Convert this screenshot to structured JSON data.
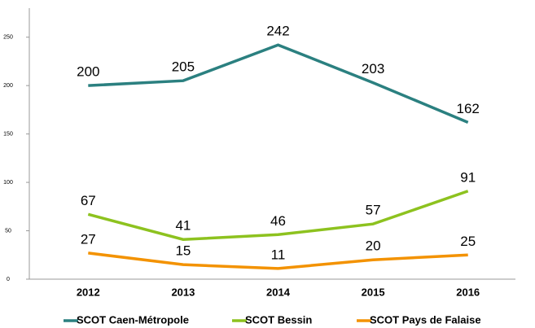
{
  "chart_data": {
    "type": "line",
    "categories": [
      "2012",
      "2013",
      "2014",
      "2015",
      "2016"
    ],
    "series": [
      {
        "name": "SCOT Caen-Métropole",
        "color": "#2b8080",
        "values": [
          200,
          205,
          242,
          203,
          162
        ]
      },
      {
        "name": "SCOT Bessin",
        "color": "#8dc21f",
        "values": [
          67,
          41,
          46,
          57,
          91
        ]
      },
      {
        "name": "SCOT Pays de Falaise",
        "color": "#f39200",
        "values": [
          27,
          15,
          11,
          20,
          25
        ]
      }
    ],
    "ylim": [
      0,
      280
    ],
    "yticks": [
      0,
      50,
      100,
      150,
      200,
      250
    ],
    "grid": false,
    "legend": "bottom"
  }
}
